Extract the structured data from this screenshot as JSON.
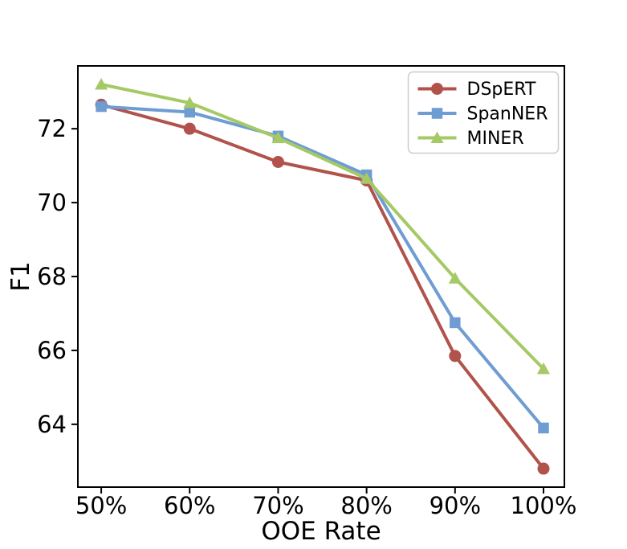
{
  "chart_data": {
    "type": "line",
    "title": "",
    "xlabel": "OOE Rate",
    "ylabel": "F1",
    "x_values": [
      50,
      60,
      70,
      80,
      90,
      100
    ],
    "x_tick_labels": [
      "50%",
      "60%",
      "70%",
      "80%",
      "90%",
      "100%"
    ],
    "y_ticks": [
      64,
      66,
      68,
      70,
      72
    ],
    "y_tick_labels": [
      "64",
      "66",
      "68",
      "70",
      "72"
    ],
    "xlim": [
      47.36,
      102.36
    ],
    "ylim": [
      62.3,
      73.7
    ],
    "grid": false,
    "legend_position": "upper right",
    "series": [
      {
        "name": "DSpERT",
        "marker": "circle",
        "color": "#b1524b",
        "values": [
          72.65,
          72.0,
          71.1,
          70.6,
          65.85,
          62.8
        ]
      },
      {
        "name": "SpanNER",
        "marker": "square",
        "color": "#6f9cd3",
        "values": [
          72.6,
          72.45,
          71.8,
          70.75,
          66.75,
          63.9
        ]
      },
      {
        "name": "MINER",
        "marker": "triangle",
        "color": "#a5c965",
        "values": [
          73.2,
          72.7,
          71.75,
          70.65,
          67.95,
          65.5
        ]
      }
    ],
    "styles": {
      "background": "#ffffff",
      "axis_color": "#000000",
      "legend_border_color": "#cccccc",
      "line_width": 4,
      "spine_width": 2,
      "tick_length": 8,
      "tick_label_size": 29,
      "axis_label_size": 31,
      "legend_font_size": 22
    }
  }
}
